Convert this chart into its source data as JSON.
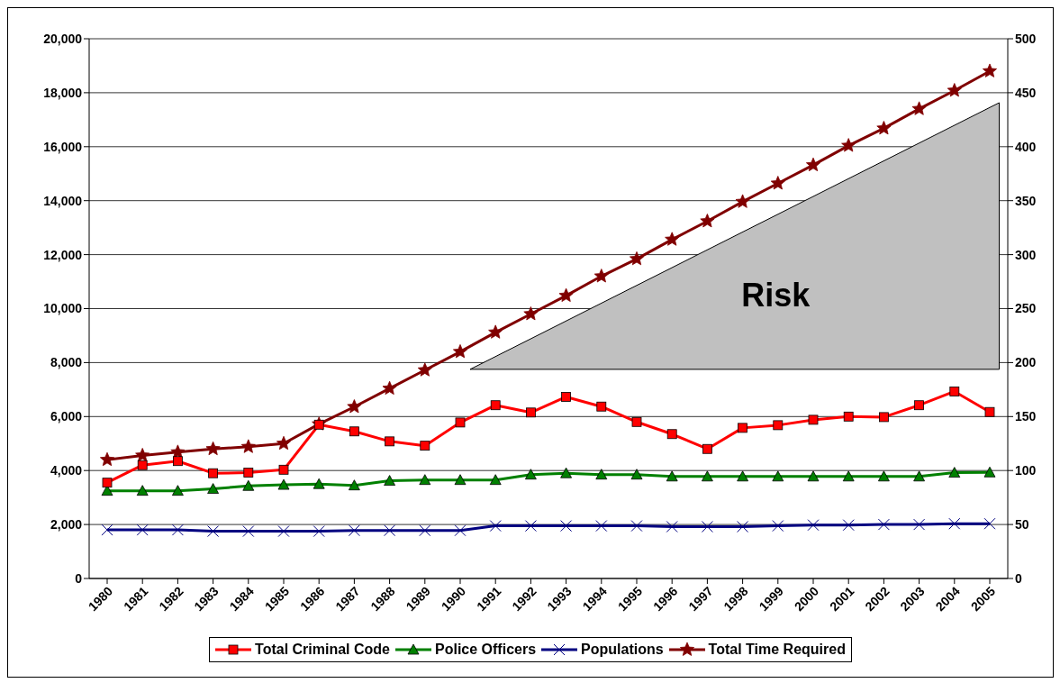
{
  "chart_data": {
    "type": "line",
    "categories": [
      "1980",
      "1981",
      "1982",
      "1983",
      "1984",
      "1985",
      "1986",
      "1987",
      "1988",
      "1989",
      "1990",
      "1991",
      "1992",
      "1993",
      "1994",
      "1995",
      "1996",
      "1997",
      "1998",
      "1999",
      "2000",
      "2001",
      "2002",
      "2003",
      "2004",
      "2005"
    ],
    "series": [
      {
        "name": "Total Criminal Code",
        "color": "#ff0000",
        "marker": "square",
        "values": [
          3550,
          4200,
          4350,
          3900,
          3920,
          4030,
          5700,
          5450,
          5080,
          4920,
          5780,
          6420,
          6150,
          6730,
          6370,
          5800,
          5350,
          4800,
          5580,
          5680,
          5880,
          6000,
          5980,
          6420,
          6930,
          6170
        ]
      },
      {
        "name": "Police Officers",
        "color": "#008000",
        "marker": "triangle",
        "values": [
          3250,
          3250,
          3250,
          3320,
          3430,
          3470,
          3500,
          3450,
          3620,
          3650,
          3650,
          3650,
          3850,
          3900,
          3850,
          3850,
          3780,
          3780,
          3780,
          3780,
          3780,
          3780,
          3780,
          3780,
          3920,
          3930
        ]
      },
      {
        "name": "Populations",
        "color": "#000080",
        "marker": "cross",
        "values": [
          1800,
          1800,
          1800,
          1750,
          1750,
          1750,
          1750,
          1780,
          1780,
          1780,
          1780,
          1950,
          1950,
          1950,
          1950,
          1950,
          1920,
          1920,
          1920,
          1950,
          1980,
          1980,
          2000,
          2000,
          2030,
          2030
        ]
      },
      {
        "name": "Total Time Required",
        "color": "#800000",
        "marker": "star",
        "axis": "y2",
        "values": [
          110,
          114,
          117,
          120,
          122,
          125,
          143,
          159,
          176,
          193,
          210,
          228,
          245,
          262,
          280,
          296,
          314,
          331,
          349,
          366,
          383,
          401,
          417,
          435,
          452,
          470
        ]
      }
    ],
    "ylim": [
      0,
      20000
    ],
    "yticks": [
      0,
      {
        "value": 2000,
        "label": "2,000"
      },
      {
        "value": 4000,
        "label": "4,000"
      },
      {
        "value": 6000,
        "label": "6,000"
      },
      {
        "value": 8000,
        "label": "8,000"
      },
      {
        "value": 10000,
        "label": "10,000"
      },
      {
        "value": 12000,
        "label": "12,000"
      },
      {
        "value": 14000,
        "label": "14,000"
      },
      {
        "value": 16000,
        "label": "16,000"
      },
      {
        "value": 18000,
        "label": "18,000"
      },
      {
        "value": 20000,
        "label": "20,000"
      }
    ],
    "y2lim": [
      0,
      500
    ],
    "y2ticks": [
      0,
      50,
      100,
      150,
      200,
      250,
      300,
      350,
      400,
      450,
      500
    ],
    "grid": "y",
    "legend": "bottom",
    "line_style": "solid",
    "annotations": [
      "Risk"
    ]
  }
}
